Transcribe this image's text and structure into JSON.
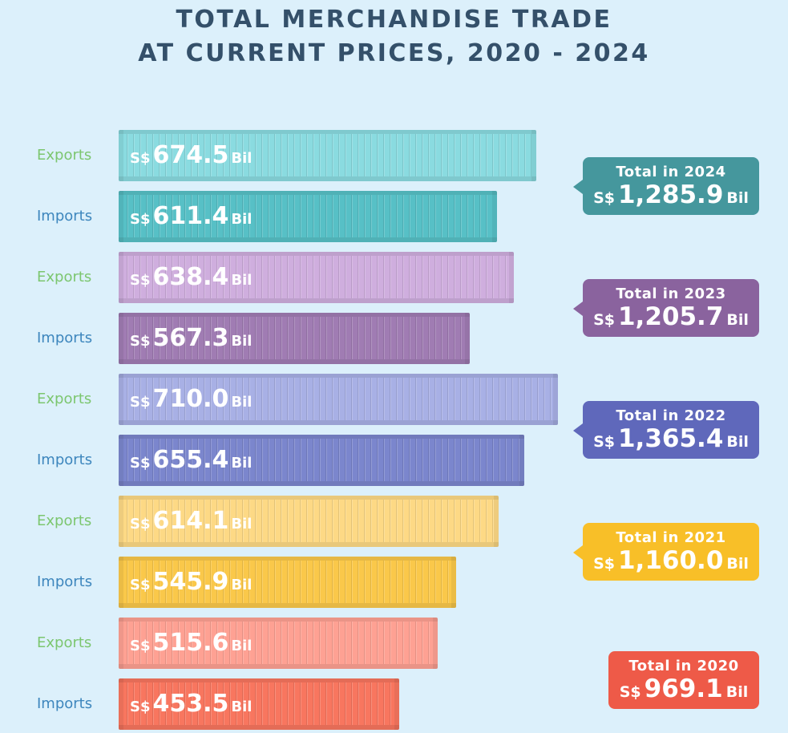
{
  "title_line1": "TOTAL MERCHANDISE TRADE",
  "title_line2": "AT CURRENT PRICES, 2020 - 2024",
  "currency": "S$",
  "unit": "Bil",
  "chart_data": {
    "type": "bar",
    "orientation": "horizontal",
    "title": "TOTAL MERCHANDISE TRADE AT CURRENT PRICES, 2020 - 2024",
    "years": [
      {
        "year": "2024",
        "total_label": "Total in 2024",
        "total": "1,285.9",
        "color_export": "#8adbe0",
        "color_import": "#57c0c6",
        "color_total": "#45979d",
        "exports": {
          "label": "Exports",
          "value": 674.5,
          "text": "674.5"
        },
        "imports": {
          "label": "Imports",
          "value": 611.4,
          "text": "611.4"
        }
      },
      {
        "year": "2023",
        "total_label": "Total in 2023",
        "total": "1,205.7",
        "color_export": "#cfaede",
        "color_import": "#a07cb3",
        "color_total": "#8a639e",
        "exports": {
          "label": "Exports",
          "value": 638.4,
          "text": "638.4"
        },
        "imports": {
          "label": "Imports",
          "value": 567.3,
          "text": "567.3"
        }
      },
      {
        "year": "2022",
        "total_label": "Total in 2022",
        "total": "1,365.4",
        "color_export": "#a8b0e5",
        "color_import": "#7b86cd",
        "color_total": "#5f68bb",
        "exports": {
          "label": "Exports",
          "value": 710.0,
          "text": "710.0"
        },
        "imports": {
          "label": "Imports",
          "value": 655.4,
          "text": "655.4"
        }
      },
      {
        "year": "2021",
        "total_label": "Total in 2021",
        "total": "1,160.0",
        "color_export": "#fdd985",
        "color_import": "#fac84a",
        "color_total": "#f8bf28",
        "exports": {
          "label": "Exports",
          "value": 614.1,
          "text": "614.1"
        },
        "imports": {
          "label": "Imports",
          "value": 545.9,
          "text": "545.9"
        }
      },
      {
        "year": "2020",
        "total_label": "Total in 2020",
        "total": "969.1",
        "color_export": "#fea193",
        "color_import": "#f8765f",
        "color_total": "#ee5a48",
        "exports": {
          "label": "Exports",
          "value": 515.6,
          "text": "515.6"
        },
        "imports": {
          "label": "Imports",
          "value": 453.5,
          "text": "453.5"
        }
      }
    ]
  }
}
